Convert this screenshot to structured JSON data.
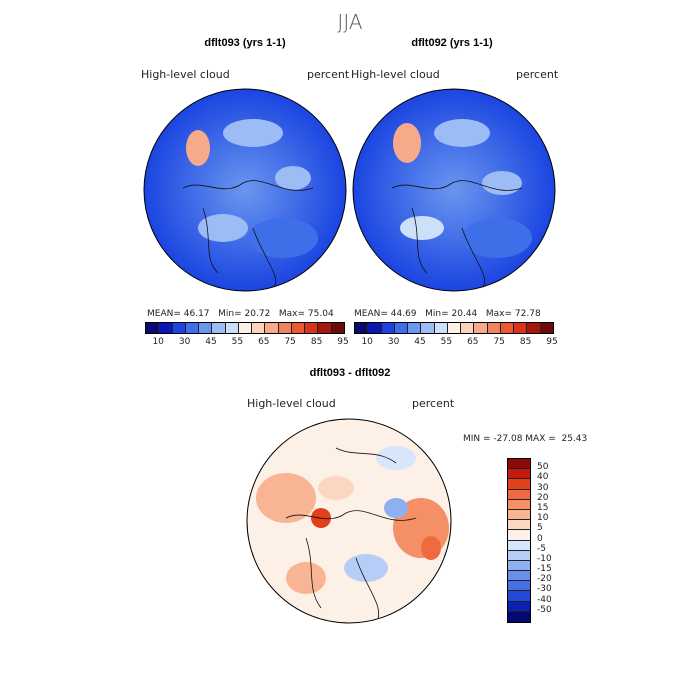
{
  "season": "JJA",
  "panels": [
    {
      "title": "dflt093 (yrs 1-1)",
      "variable": "High-level cloud",
      "units": "percent",
      "mean_label": "MEAN=",
      "mean": "46.17",
      "min_label": "Min=",
      "min": "20.72",
      "max_label": "Max=",
      "max": "75.04"
    },
    {
      "title": "dflt092 (yrs 1-1)",
      "variable": "High-level cloud",
      "units": "percent",
      "mean_label": "MEAN=",
      "mean": "44.69",
      "min_label": "Min=",
      "min": "20.44",
      "max_label": "Max=",
      "max": "72.78"
    }
  ],
  "diff": {
    "title": "dflt093 - dflt092",
    "variable": "High-level cloud",
    "units": "percent",
    "minmax": "MIN = -27.08 MAX =  25.43"
  },
  "colorbar_top": {
    "colors": [
      "#0a0a6e",
      "#0b16b5",
      "#1a44e0",
      "#3f6fe8",
      "#6a96f0",
      "#9bbcf5",
      "#cde0fa",
      "#fdf0e6",
      "#fcd2bb",
      "#f7aa8a",
      "#f2825e",
      "#ec5a33",
      "#d9341a",
      "#a8180d",
      "#6e0b08"
    ],
    "tick_labels": [
      "10",
      "30",
      "45",
      "55",
      "65",
      "75",
      "85",
      "95"
    ]
  },
  "colorbar_diff": {
    "colors": [
      "#8a0a0a",
      "#c41b0e",
      "#e0401a",
      "#ef6a3e",
      "#f58f66",
      "#f9b494",
      "#fcd7c2",
      "#fdf0e6",
      "#d8e6fb",
      "#b5cdf7",
      "#8db0f1",
      "#6a90ea",
      "#4670e3",
      "#2448d8",
      "#0b22b0",
      "#050870"
    ],
    "tick_labels": [
      "50",
      "40",
      "30",
      "20",
      "15",
      "10",
      "5",
      "0",
      "-5",
      "-10",
      "-15",
      "-20",
      "-30",
      "-40",
      "-50"
    ]
  }
}
